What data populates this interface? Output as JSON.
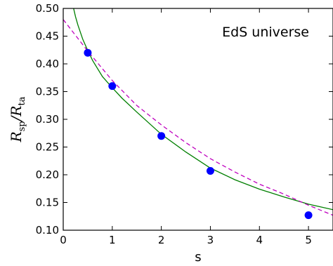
{
  "chart_data": {
    "type": "scatter",
    "title": "",
    "annotation": "EdS universe",
    "xlabel": "s",
    "ylabel": {
      "main": "R",
      "sub1": "sp",
      "slash": "/",
      "main2": "R",
      "sub2": "ta"
    },
    "xlim": [
      0,
      5.5
    ],
    "ylim": [
      0.1,
      0.5
    ],
    "x_ticks": [
      0,
      1,
      2,
      3,
      4,
      5
    ],
    "y_ticks": [
      0.1,
      0.15,
      0.2,
      0.25,
      0.3,
      0.35,
      0.4,
      0.45,
      0.5
    ],
    "y_tick_labels": [
      "0.10",
      "0.15",
      "0.20",
      "0.25",
      "0.30",
      "0.35",
      "0.40",
      "0.45",
      "0.50"
    ],
    "grid": false,
    "series": [
      {
        "kind": "points",
        "color": "#0000ff",
        "x": [
          0.5,
          1,
          2,
          3,
          5
        ],
        "y": [
          0.42,
          0.36,
          0.27,
          0.207,
          0.127
        ]
      },
      {
        "kind": "solid-curve",
        "color": "#007f00",
        "x": [
          0.2,
          0.25,
          0.3,
          0.4,
          0.5,
          0.6,
          0.8,
          1.0,
          1.2,
          1.5,
          2.0,
          2.5,
          3.0,
          3.5,
          4.0,
          4.5,
          5.0,
          5.5
        ],
        "y": [
          0.504,
          0.485,
          0.47,
          0.444,
          0.424,
          0.406,
          0.377,
          0.357,
          0.338,
          0.313,
          0.273,
          0.241,
          0.212,
          0.191,
          0.174,
          0.16,
          0.147,
          0.137
        ]
      },
      {
        "kind": "dashed-curve",
        "color": "#bf00bf",
        "x": [
          0,
          0.5,
          1.0,
          1.5,
          2.0,
          2.5,
          3.0,
          3.5,
          4.0,
          4.5,
          5.0,
          5.5
        ],
        "y": [
          0.48,
          0.423,
          0.37,
          0.325,
          0.29,
          0.258,
          0.229,
          0.205,
          0.183,
          0.165,
          0.145,
          0.127
        ]
      }
    ]
  }
}
